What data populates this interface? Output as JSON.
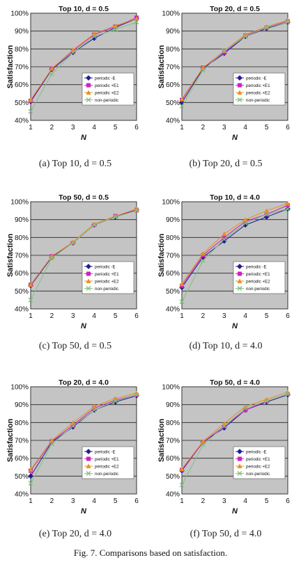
{
  "figure_caption": "Fig. 7. Comparisons based on satisfaction.",
  "chart_data": [
    {
      "type": "line",
      "title": "Top 10, d = 0.5",
      "caption": "(a) Top 10, d = 0.5",
      "xlabel": "N",
      "ylabel": "Satisfaction",
      "x": [
        1,
        2,
        3,
        4,
        5,
        6
      ],
      "xticks": [
        "1",
        "2",
        "3",
        "4",
        "5",
        "6"
      ],
      "ylim": [
        40,
        100
      ],
      "yticks": [
        "40%",
        "50%",
        "60%",
        "70%",
        "80%",
        "90%",
        "100%"
      ],
      "grid": true,
      "legend": "right",
      "series": [
        {
          "name": "periodic -E",
          "marker": "diamond",
          "color": "#1f1f8f",
          "values": [
            50.5,
            68.5,
            78,
            86,
            92,
            97
          ]
        },
        {
          "name": "periodic +E1",
          "marker": "square",
          "color": "#d020c0",
          "values": [
            51,
            69,
            79,
            88,
            92.5,
            97.5
          ]
        },
        {
          "name": "periodic +E2",
          "marker": "triangle",
          "color": "#e89020",
          "values": [
            51.5,
            69,
            79.5,
            88.5,
            93,
            97
          ]
        },
        {
          "name": "non-periodic",
          "marker": "x",
          "color": "#80c080",
          "values": [
            45,
            66,
            78,
            87,
            91,
            95
          ]
        }
      ]
    },
    {
      "type": "line",
      "title": "Top 20, d = 0.5",
      "caption": "(b) Top 20, d = 0.5",
      "xlabel": "N",
      "ylabel": "Satisfaction",
      "x": [
        1,
        2,
        3,
        4,
        5,
        6
      ],
      "xticks": [
        "1",
        "2",
        "3",
        "4",
        "5",
        "6"
      ],
      "ylim": [
        40,
        100
      ],
      "yticks": [
        "40%",
        "50%",
        "60%",
        "70%",
        "80%",
        "90%",
        "100%"
      ],
      "grid": true,
      "legend": "right",
      "series": [
        {
          "name": "periodic -E",
          "marker": "diamond",
          "color": "#1f1f8f",
          "values": [
            50,
            69,
            77.5,
            87,
            91.5,
            95
          ]
        },
        {
          "name": "periodic +E1",
          "marker": "square",
          "color": "#d020c0",
          "values": [
            51.5,
            69.5,
            78,
            87.5,
            92,
            95.5
          ]
        },
        {
          "name": "periodic +E2",
          "marker": "triangle",
          "color": "#e89020",
          "values": [
            52,
            69.5,
            79,
            88,
            92.5,
            96
          ]
        },
        {
          "name": "non-periodic",
          "marker": "x",
          "color": "#80c080",
          "values": [
            48,
            68,
            79,
            87,
            92,
            95
          ]
        }
      ]
    },
    {
      "type": "line",
      "title": "Top 50, d = 0.5",
      "caption": "(c) Top 50, d = 0.5",
      "xlabel": "N",
      "ylabel": "Satisfaction",
      "x": [
        1,
        2,
        3,
        4,
        5,
        6
      ],
      "xticks": [
        "1",
        "2",
        "3",
        "4",
        "5",
        "6"
      ],
      "ylim": [
        40,
        100
      ],
      "yticks": [
        "40%",
        "50%",
        "60%",
        "70%",
        "80%",
        "90%",
        "100%"
      ],
      "grid": true,
      "legend": "right",
      "series": [
        {
          "name": "periodic -E",
          "marker": "diamond",
          "color": "#1f1f8f",
          "values": [
            53,
            69,
            77,
            87,
            91.5,
            95.5
          ]
        },
        {
          "name": "periodic +E1",
          "marker": "square",
          "color": "#d020c0",
          "values": [
            53.5,
            69.5,
            77,
            87,
            92,
            95.5
          ]
        },
        {
          "name": "periodic +E2",
          "marker": "triangle",
          "color": "#e89020",
          "values": [
            53.5,
            69.5,
            77.5,
            87.5,
            92,
            96
          ]
        },
        {
          "name": "non-periodic",
          "marker": "x",
          "color": "#80c080",
          "values": [
            45,
            68.5,
            77,
            87,
            91.5,
            95
          ]
        }
      ]
    },
    {
      "type": "line",
      "title": "Top 10, d = 4.0",
      "caption": "(d) Top 10, d = 4.0",
      "xlabel": "N",
      "ylabel": "Satisfaction",
      "x": [
        1,
        2,
        3,
        4,
        5,
        6
      ],
      "xticks": [
        "1",
        "2",
        "3",
        "4",
        "5",
        "6"
      ],
      "ylim": [
        40,
        100
      ],
      "yticks": [
        "40%",
        "50%",
        "60%",
        "70%",
        "80%",
        "90%",
        "100%"
      ],
      "grid": true,
      "legend": "right",
      "series": [
        {
          "name": "periodic -E",
          "marker": "diamond",
          "color": "#1f1f8f",
          "values": [
            52,
            69,
            78,
            87,
            91.5,
            96
          ]
        },
        {
          "name": "periodic +E1",
          "marker": "square",
          "color": "#d020c0",
          "values": [
            53,
            70,
            80,
            89,
            93,
            98
          ]
        },
        {
          "name": "periodic +E2",
          "marker": "triangle",
          "color": "#e89020",
          "values": [
            54,
            71,
            82,
            90,
            95,
            99
          ]
        },
        {
          "name": "non-periodic",
          "marker": "x",
          "color": "#80c080",
          "values": [
            44,
            67,
            79,
            88,
            93,
            96
          ]
        }
      ]
    },
    {
      "type": "line",
      "title": "Top 20, d = 4.0",
      "caption": "(e) Top 20, d = 4.0",
      "xlabel": "N",
      "ylabel": "Satisfaction",
      "x": [
        1,
        2,
        3,
        4,
        5,
        6
      ],
      "xticks": [
        "1",
        "2",
        "3",
        "4",
        "5",
        "6"
      ],
      "ylim": [
        40,
        100
      ],
      "yticks": [
        "40%",
        "50%",
        "60%",
        "70%",
        "80%",
        "90%",
        "100%"
      ],
      "grid": true,
      "legend": "right",
      "series": [
        {
          "name": "periodic -E",
          "marker": "diamond",
          "color": "#1f1f8f",
          "values": [
            50,
            69,
            77.5,
            87,
            91.5,
            95
          ]
        },
        {
          "name": "periodic +E1",
          "marker": "square",
          "color": "#d020c0",
          "values": [
            53,
            69.5,
            78.5,
            88,
            92.5,
            95.5
          ]
        },
        {
          "name": "periodic +E2",
          "marker": "triangle",
          "color": "#e89020",
          "values": [
            53.5,
            70,
            80,
            89,
            93.5,
            96.5
          ]
        },
        {
          "name": "non-periodic",
          "marker": "x",
          "color": "#80c080",
          "values": [
            46,
            68,
            78,
            87,
            92,
            95.5
          ]
        }
      ]
    },
    {
      "type": "line",
      "title": "Top 50, d = 4.0",
      "caption": "(f) Top 50, d = 4.0",
      "xlabel": "N",
      "ylabel": "Satisfaction",
      "x": [
        1,
        2,
        3,
        4,
        5,
        6
      ],
      "xticks": [
        "1",
        "2",
        "3",
        "4",
        "5",
        "6"
      ],
      "ylim": [
        40,
        100
      ],
      "yticks": [
        "40%",
        "50%",
        "60%",
        "70%",
        "80%",
        "90%",
        "100%"
      ],
      "grid": true,
      "legend": "right",
      "series": [
        {
          "name": "periodic -E",
          "marker": "diamond",
          "color": "#1f1f8f",
          "values": [
            53,
            69,
            77,
            87,
            91.5,
            95.5
          ]
        },
        {
          "name": "periodic +E1",
          "marker": "square",
          "color": "#d020c0",
          "values": [
            53.5,
            69,
            78,
            87,
            92,
            96
          ]
        },
        {
          "name": "periodic +E2",
          "marker": "triangle",
          "color": "#e89020",
          "values": [
            54,
            69.5,
            79.5,
            89,
            93,
            97
          ]
        },
        {
          "name": "non-periodic",
          "marker": "x",
          "color": "#80c080",
          "values": [
            45,
            67.5,
            78,
            88,
            92,
            96
          ]
        }
      ]
    }
  ]
}
